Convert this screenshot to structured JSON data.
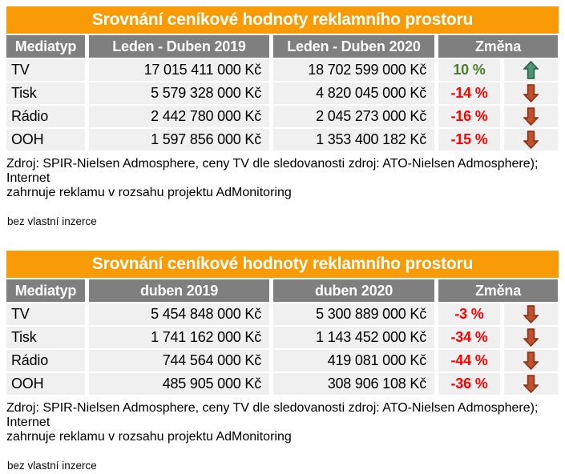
{
  "colors": {
    "accent_orange": "#F99B06",
    "header_gray": "#7F7F7F",
    "row_bg": "#F0F0F0",
    "positive_green": "#4E7D2D",
    "negative_red": "#FF0000",
    "up_arrow_fill": "#4F9376",
    "up_arrow_outline": "#28624A",
    "down_arrow_fill": "#C0512D",
    "down_arrow_outline": "#8C3016"
  },
  "icons": {
    "up": "up-arrow-icon",
    "down": "down-arrow-icon"
  },
  "chart_data": [
    {
      "type": "table",
      "title": "Srovnání ceníkové hodnoty reklamního prostoru",
      "columns": [
        "Mediatyp",
        "Leden - Duben 2019",
        "Leden - Duben 2020",
        "Změna"
      ],
      "rows": [
        {
          "mediatype": "TV",
          "period1": "17 015 411 000 Kč",
          "period2": "18 702 599 000 Kč",
          "change": "10 %",
          "direction": "up"
        },
        {
          "mediatype": "Tisk",
          "period1": "5 579 328 000 Kč",
          "period2": "4 820 045 000 Kč",
          "change": "-14 %",
          "direction": "down"
        },
        {
          "mediatype": "Rádio",
          "period1": "2 442 780 000 Kč",
          "period2": "2 045 273 000 Kč",
          "change": "-16 %",
          "direction": "down"
        },
        {
          "mediatype": "OOH",
          "period1": "1 597 856 000 Kč",
          "period2": "1 353 400 182 Kč",
          "change": "-15 %",
          "direction": "down"
        }
      ],
      "source_line1": "Zdroj: SPIR-Nielsen Admosphere, ceny TV dle sledovanosti zdroj: ATO-Nielsen Admosphere); Internet",
      "source_line2": "zahrnuje reklamu v rozsahu projektu AdMonitoring",
      "source_note": "bez vlastní inzerce"
    },
    {
      "type": "table",
      "title": "Srovnání ceníkové hodnoty reklamního prostoru",
      "columns": [
        "Mediatyp",
        "duben 2019",
        "duben 2020",
        "Změna"
      ],
      "rows": [
        {
          "mediatype": "TV",
          "period1": "5 454 848 000 Kč",
          "period2": "5 300 889 000 Kč",
          "change": "-3 %",
          "direction": "down"
        },
        {
          "mediatype": "Tisk",
          "period1": "1 741 162 000 Kč",
          "period2": "1 143 452 000 Kč",
          "change": "-34 %",
          "direction": "down"
        },
        {
          "mediatype": "Rádio",
          "period1": "744 564 000 Kč",
          "period2": "419 081 000 Kč",
          "change": "-44 %",
          "direction": "down"
        },
        {
          "mediatype": "OOH",
          "period1": "485 905 000 Kč",
          "period2": "308 906 108 Kč",
          "change": "-36 %",
          "direction": "down"
        }
      ],
      "source_line1": "Zdroj: SPIR-Nielsen Admosphere, ceny TV dle sledovanosti zdroj: ATO-Nielsen Admosphere); Internet",
      "source_line2": "zahrnuje reklamu v rozsahu projektu AdMonitoring",
      "source_note": "bez vlastní inzerce"
    }
  ]
}
